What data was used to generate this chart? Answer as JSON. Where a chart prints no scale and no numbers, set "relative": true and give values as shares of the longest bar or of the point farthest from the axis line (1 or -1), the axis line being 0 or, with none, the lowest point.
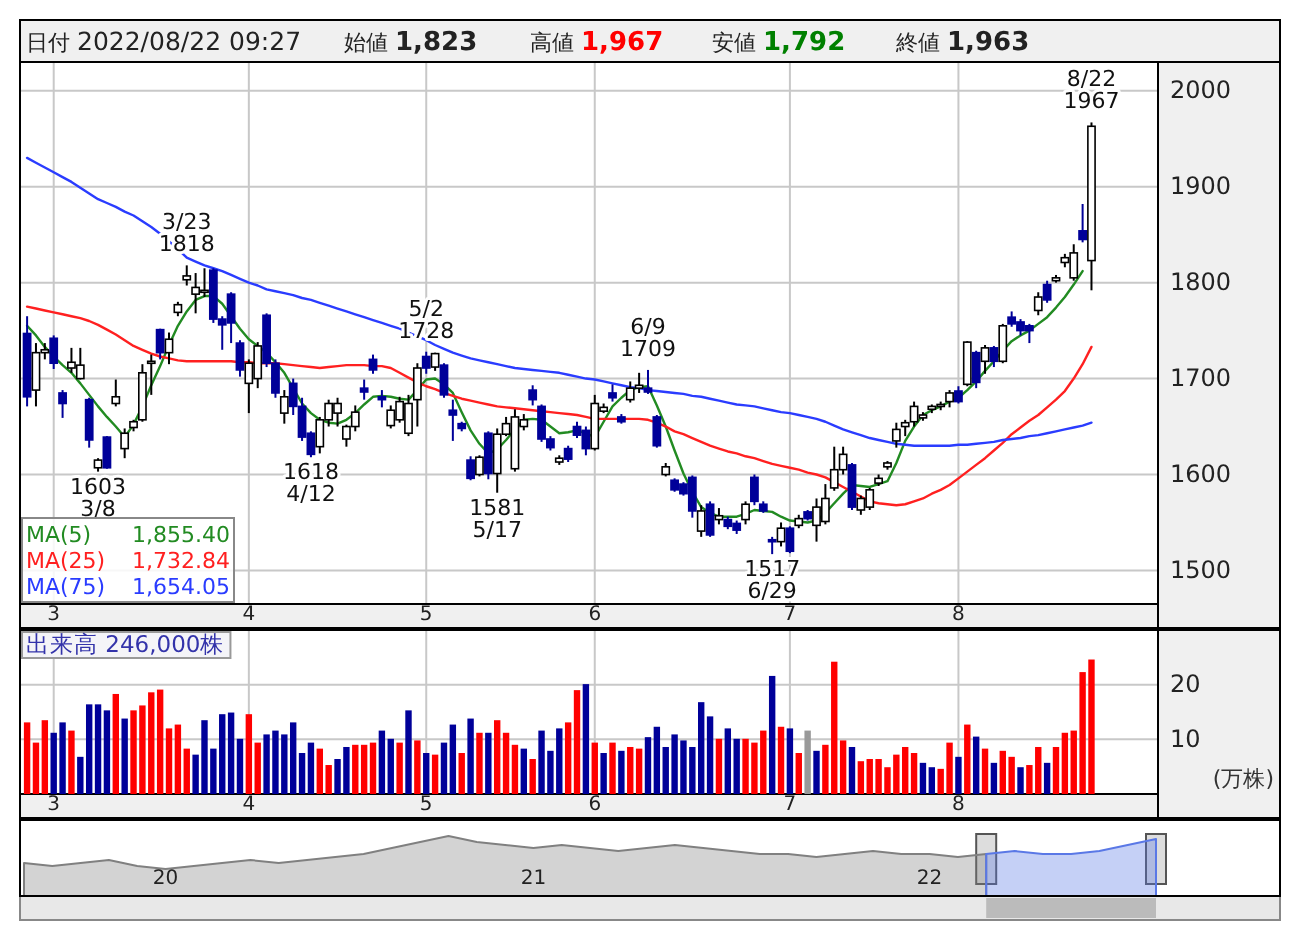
{
  "chart_data": [
    {
      "type": "candlestick",
      "ylim": [
        1465,
        2030
      ],
      "yticks": [
        1500,
        1600,
        1700,
        1800,
        1900,
        2000
      ],
      "grid": true,
      "annotations": [
        "日付 2022/08/22 09:27",
        "始値 1,823",
        "高値 1,967",
        "安値 1,792",
        "終値 1,963",
        {
          "text": "1603 3/8",
          "y": 1603
        },
        {
          "text": "3/23 1818",
          "y": 1818
        },
        {
          "text": "1618 4/12",
          "y": 1618
        },
        {
          "text": "5/2 1728",
          "y": 1728
        },
        {
          "text": "1581 5/17",
          "y": 1581
        },
        {
          "text": "6/9 1709",
          "y": 1709
        },
        {
          "text": "1517 6/29",
          "y": 1517
        },
        {
          "text": "8/22 1967",
          "y": 1967
        }
      ],
      "categories": [
        null,
        null,
        null,
        "3",
        null,
        null,
        null,
        null,
        null,
        null,
        null,
        null,
        null,
        null,
        null,
        null,
        null,
        null,
        null,
        null,
        null,
        null,
        null,
        null,
        null,
        "4",
        null,
        null,
        null,
        null,
        null,
        null,
        null,
        null,
        null,
        null,
        null,
        null,
        null,
        null,
        null,
        null,
        null,
        null,
        null,
        "5",
        null,
        null,
        null,
        null,
        null,
        null,
        null,
        null,
        null,
        null,
        null,
        null,
        null,
        null,
        null,
        null,
        null,
        null,
        "6",
        null,
        null,
        null,
        null,
        null,
        null,
        null,
        null,
        null,
        null,
        null,
        null,
        null,
        null,
        null,
        null,
        null,
        null,
        null,
        null,
        null,
        "7",
        null,
        null,
        null,
        null,
        null,
        null,
        null,
        null,
        null,
        null,
        null,
        null,
        null,
        null,
        null,
        null,
        null,
        null,
        "8",
        null,
        null,
        null,
        null,
        null,
        null,
        null,
        null,
        null,
        null,
        null,
        null,
        null,
        null,
        null
      ],
      "ohlc": [
        [
          1747,
          1765,
          1671,
          1681
        ],
        [
          1688,
          1737,
          1671,
          1727
        ],
        [
          1727,
          1737,
          1720,
          1730
        ],
        [
          1742,
          1745,
          1710,
          1716
        ],
        [
          1685,
          1688,
          1659,
          1674
        ],
        [
          1711,
          1732,
          1706,
          1717
        ],
        [
          1700,
          1732,
          1699,
          1714
        ],
        [
          1678,
          1680,
          1628,
          1636
        ],
        [
          1607,
          1617,
          1603,
          1615
        ],
        [
          1639,
          1640,
          1606,
          1607
        ],
        [
          1674,
          1699,
          1671,
          1681
        ],
        [
          1627,
          1648,
          1617,
          1643
        ],
        [
          1649,
          1657,
          1645,
          1655
        ],
        [
          1657,
          1715,
          1655,
          1706
        ],
        [
          1716,
          1725,
          1683,
          1718
        ],
        [
          1751,
          1752,
          1720,
          1727
        ],
        [
          1727,
          1748,
          1715,
          1741
        ],
        [
          1769,
          1780,
          1765,
          1777
        ],
        [
          1803,
          1818,
          1797,
          1807
        ],
        [
          1788,
          1810,
          1768,
          1795
        ],
        [
          1790,
          1815,
          1785,
          1792
        ],
        [
          1813,
          1815,
          1758,
          1762
        ],
        [
          1762,
          1765,
          1730,
          1756
        ],
        [
          1788,
          1790,
          1737,
          1758
        ],
        [
          1737,
          1740,
          1702,
          1709
        ],
        [
          1695,
          1720,
          1664,
          1716
        ],
        [
          1700,
          1738,
          1690,
          1734
        ],
        [
          1766,
          1768,
          1712,
          1716
        ],
        [
          1716,
          1720,
          1680,
          1685
        ],
        [
          1664,
          1688,
          1653,
          1681
        ],
        [
          1695,
          1700,
          1662,
          1671
        ],
        [
          1671,
          1680,
          1635,
          1639
        ],
        [
          1643,
          1645,
          1618,
          1621
        ],
        [
          1629,
          1660,
          1622,
          1657
        ],
        [
          1657,
          1678,
          1650,
          1674
        ],
        [
          1664,
          1680,
          1650,
          1674
        ],
        [
          1637,
          1652,
          1629,
          1650
        ],
        [
          1650,
          1672,
          1645,
          1665
        ],
        [
          1690,
          1699,
          1678,
          1686
        ],
        [
          1720,
          1725,
          1705,
          1709
        ],
        [
          1681,
          1688,
          1670,
          1678
        ],
        [
          1651,
          1672,
          1648,
          1667
        ],
        [
          1657,
          1681,
          1654,
          1676
        ],
        [
          1643,
          1683,
          1640,
          1674
        ],
        [
          1678,
          1716,
          1650,
          1711
        ],
        [
          1723,
          1728,
          1705,
          1711
        ],
        [
          1712,
          1727,
          1708,
          1726
        ],
        [
          1714,
          1716,
          1680,
          1683
        ],
        [
          1667,
          1678,
          1635,
          1662
        ],
        [
          1653,
          1655,
          1645,
          1648
        ],
        [
          1615,
          1619,
          1594,
          1596
        ],
        [
          1600,
          1620,
          1598,
          1618
        ],
        [
          1643,
          1645,
          1595,
          1601
        ],
        [
          1601,
          1648,
          1581,
          1642
        ],
        [
          1642,
          1660,
          1640,
          1653
        ],
        [
          1606,
          1668,
          1603,
          1660
        ],
        [
          1650,
          1663,
          1646,
          1657
        ],
        [
          1688,
          1693,
          1672,
          1678
        ],
        [
          1671,
          1673,
          1634,
          1637
        ],
        [
          1637,
          1640,
          1625,
          1628
        ],
        [
          1613,
          1620,
          1610,
          1617
        ],
        [
          1627,
          1630,
          1613,
          1616
        ],
        [
          1650,
          1655,
          1638,
          1641
        ],
        [
          1646,
          1650,
          1620,
          1627
        ],
        [
          1627,
          1683,
          1625,
          1674
        ],
        [
          1666,
          1674,
          1664,
          1670
        ],
        [
          1685,
          1694,
          1676,
          1680
        ],
        [
          1660,
          1663,
          1653,
          1655
        ],
        [
          1678,
          1697,
          1675,
          1690
        ],
        [
          1690,
          1706,
          1685,
          1693
        ],
        [
          1690,
          1709,
          1684,
          1686
        ],
        [
          1660,
          1662,
          1628,
          1630
        ],
        [
          1600,
          1612,
          1598,
          1608
        ],
        [
          1594,
          1596,
          1582,
          1584
        ],
        [
          1590,
          1592,
          1578,
          1580
        ],
        [
          1597,
          1599,
          1555,
          1562
        ],
        [
          1541,
          1568,
          1535,
          1562
        ],
        [
          1569,
          1572,
          1535,
          1537
        ],
        [
          1553,
          1565,
          1548,
          1557
        ],
        [
          1553,
          1556,
          1543,
          1546
        ],
        [
          1549,
          1552,
          1538,
          1542
        ],
        [
          1553,
          1572,
          1548,
          1569
        ],
        [
          1597,
          1600,
          1568,
          1572
        ],
        [
          1569,
          1572,
          1560,
          1562
        ],
        [
          1532,
          1535,
          1517,
          1530
        ],
        [
          1530,
          1550,
          1525,
          1544
        ],
        [
          1544,
          1546,
          1518,
          1520
        ],
        [
          1547,
          1558,
          1544,
          1554
        ],
        [
          1561,
          1563,
          1552,
          1554
        ],
        [
          1547,
          1575,
          1530,
          1566
        ],
        [
          1551,
          1590,
          1548,
          1575
        ],
        [
          1586,
          1629,
          1583,
          1605
        ],
        [
          1605,
          1629,
          1600,
          1621
        ],
        [
          1610,
          1612,
          1563,
          1566
        ],
        [
          1563,
          1578,
          1558,
          1575
        ],
        [
          1566,
          1586,
          1563,
          1584
        ],
        [
          1591,
          1600,
          1588,
          1596
        ],
        [
          1608,
          1614,
          1605,
          1612
        ],
        [
          1635,
          1654,
          1628,
          1647
        ],
        [
          1650,
          1657,
          1640,
          1654
        ],
        [
          1655,
          1676,
          1650,
          1671
        ],
        [
          1659,
          1665,
          1656,
          1662
        ],
        [
          1668,
          1673,
          1664,
          1671
        ],
        [
          1671,
          1676,
          1667,
          1673
        ],
        [
          1676,
          1688,
          1670,
          1685
        ],
        [
          1687,
          1692,
          1674,
          1676
        ],
        [
          1694,
          1739,
          1692,
          1738
        ],
        [
          1727,
          1729,
          1690,
          1696
        ],
        [
          1718,
          1735,
          1705,
          1732
        ],
        [
          1732,
          1734,
          1712,
          1718
        ],
        [
          1718,
          1757,
          1716,
          1755
        ],
        [
          1764,
          1770,
          1754,
          1757
        ],
        [
          1759,
          1762,
          1745,
          1750
        ],
        [
          1755,
          1757,
          1737,
          1750
        ],
        [
          1771,
          1790,
          1766,
          1785
        ],
        [
          1798,
          1802,
          1779,
          1782
        ],
        [
          1802,
          1808,
          1800,
          1805
        ],
        [
          1821,
          1830,
          1816,
          1826
        ],
        [
          1805,
          1840,
          1802,
          1831
        ],
        [
          1854,
          1882,
          1842,
          1845
        ],
        [
          1823,
          1967,
          1792,
          1963
        ]
      ],
      "series": [
        {
          "name": "MA(5) 1,855.40",
          "type": "line",
          "color": "#228b22",
          "values": [
            1755,
            1745,
            1733,
            1723,
            1714,
            1706,
            1695,
            1683,
            1671,
            1660,
            1650,
            1639,
            1652,
            1671,
            1693,
            1713,
            1735,
            1755,
            1770,
            1782,
            1786,
            1786,
            1778,
            1765,
            1752,
            1741,
            1734,
            1727,
            1717,
            1706,
            1690,
            1674,
            1664,
            1657,
            1654,
            1653,
            1657,
            1664,
            1673,
            1681,
            1682,
            1681,
            1679,
            1678,
            1688,
            1699,
            1700,
            1694,
            1685,
            1665,
            1646,
            1632,
            1622,
            1626,
            1636,
            1647,
            1657,
            1658,
            1657,
            1650,
            1643,
            1644,
            1646,
            1643,
            1639,
            1655,
            1671,
            1680,
            1688,
            1691,
            1692,
            1672,
            1650,
            1625,
            1601,
            1582,
            1566,
            1560,
            1556,
            1556,
            1556,
            1559,
            1563,
            1562,
            1561,
            1556,
            1552,
            1551,
            1550,
            1552,
            1560,
            1570,
            1580,
            1589,
            1588,
            1587,
            1590,
            1593,
            1612,
            1635,
            1650,
            1662,
            1667,
            1671,
            1676,
            1680,
            1688,
            1697,
            1708,
            1718,
            1729,
            1739,
            1745,
            1750,
            1757,
            1764,
            1774,
            1785,
            1798,
            1812,
            null
          ]
        },
        {
          "name": "MA(25) 1,732.84",
          "type": "line",
          "color": "#ff2020",
          "values": [
            1775,
            1773,
            1771,
            1769,
            1767,
            1765,
            1763,
            1760,
            1756,
            1751,
            1746,
            1740,
            1734,
            1730,
            1726,
            1723,
            1721,
            1719,
            1718,
            1718,
            1718,
            1718,
            1718,
            1718,
            1717,
            1717,
            1716,
            1716,
            1716,
            1715,
            1714,
            1713,
            1712,
            1711,
            1712,
            1713,
            1714,
            1714,
            1714,
            1713,
            1713,
            1711,
            1706,
            1701,
            1696,
            1692,
            1689,
            1685,
            1682,
            1679,
            1677,
            1675,
            1673,
            1671,
            1670,
            1669,
            1668,
            1667,
            1666,
            1665,
            1664,
            1663,
            1662,
            1660,
            1658,
            1658,
            1658,
            1658,
            1658,
            1658,
            1657,
            1654,
            1650,
            1645,
            1642,
            1638,
            1634,
            1630,
            1627,
            1624,
            1622,
            1619,
            1617,
            1614,
            1611,
            1609,
            1607,
            1605,
            1602,
            1600,
            1597,
            1592,
            1587,
            1582,
            1577,
            1572,
            1570,
            1569,
            1568,
            1569,
            1572,
            1575,
            1580,
            1584,
            1589,
            1596,
            1603,
            1610,
            1617,
            1625,
            1633,
            1642,
            1649,
            1656,
            1662,
            1670,
            1678,
            1687,
            1700,
            1715,
            1733
          ]
        },
        {
          "name": "MA(75) 1,654.05",
          "type": "line",
          "color": "#2a3cff",
          "values": [
            1930,
            1925,
            1920,
            1915,
            1910,
            1905,
            1899,
            1893,
            1887,
            1883,
            1879,
            1874,
            1870,
            1864,
            1858,
            1851,
            1843,
            1835,
            1826,
            1822,
            1818,
            1815,
            1812,
            1808,
            1804,
            1800,
            1797,
            1793,
            1791,
            1789,
            1787,
            1784,
            1782,
            1779,
            1776,
            1773,
            1770,
            1767,
            1764,
            1761,
            1758,
            1755,
            1752,
            1748,
            1744,
            1740,
            1735,
            1731,
            1727,
            1724,
            1721,
            1719,
            1717,
            1715,
            1713,
            1711,
            1710,
            1709,
            1708,
            1707,
            1706,
            1704,
            1702,
            1700,
            1699,
            1697,
            1695,
            1693,
            1691,
            1690,
            1688,
            1687,
            1686,
            1685,
            1684,
            1682,
            1681,
            1679,
            1677,
            1675,
            1673,
            1672,
            1671,
            1669,
            1667,
            1665,
            1664,
            1662,
            1660,
            1658,
            1655,
            1651,
            1647,
            1644,
            1641,
            1638,
            1636,
            1634,
            1632,
            1631,
            1630,
            1630,
            1630,
            1630,
            1630,
            1631,
            1631,
            1632,
            1633,
            1634,
            1636,
            1637,
            1638,
            1640,
            1641,
            1643,
            1645,
            1647,
            1649,
            1651,
            1654
          ]
        }
      ]
    },
    {
      "type": "bar",
      "title": "出来高 246,000株",
      "ylabel": "(万株)",
      "ylim": [
        0,
        30
      ],
      "yticks": [
        10,
        20
      ],
      "grid": true,
      "categories": [
        null,
        null,
        null,
        "3",
        null,
        null,
        null,
        null,
        null,
        null,
        null,
        null,
        null,
        null,
        null,
        null,
        null,
        null,
        null,
        null,
        null,
        null,
        null,
        null,
        null,
        "4",
        null,
        null,
        null,
        null,
        null,
        null,
        null,
        null,
        null,
        null,
        null,
        null,
        null,
        null,
        null,
        null,
        null,
        null,
        null,
        "5",
        null,
        null,
        null,
        null,
        null,
        null,
        null,
        null,
        null,
        null,
        null,
        null,
        null,
        null,
        null,
        null,
        null,
        null,
        "6",
        null,
        null,
        null,
        null,
        null,
        null,
        null,
        null,
        null,
        null,
        null,
        null,
        null,
        null,
        null,
        null,
        null,
        null,
        null,
        null,
        null,
        "7",
        null,
        null,
        null,
        null,
        null,
        null,
        null,
        null,
        null,
        null,
        null,
        null,
        null,
        null,
        null,
        null,
        null,
        null,
        "8",
        null,
        null,
        null,
        null,
        null,
        null,
        null,
        null,
        null,
        null,
        null,
        null,
        null,
        null,
        null
      ],
      "values": [
        13.1,
        9.4,
        13.5,
        11.2,
        13.1,
        11.6,
        6.8,
        16.4,
        16.4,
        15.3,
        18.3,
        13.8,
        15.3,
        16.2,
        18.6,
        19.1,
        12.0,
        12.7,
        8.3,
        7.2,
        13.5,
        8.3,
        14.6,
        14.9,
        10.1,
        14.6,
        9.4,
        10.9,
        11.6,
        10.9,
        13.1,
        7.5,
        9.4,
        8.3,
        5.3,
        6.4,
        8.6,
        9.0,
        9.0,
        9.4,
        11.6,
        10.1,
        9.4,
        15.3,
        9.8,
        7.5,
        7.2,
        9.4,
        12.7,
        7.5,
        13.8,
        11.2,
        11.2,
        13.5,
        11.2,
        9.0,
        8.3,
        6.4,
        11.6,
        7.9,
        12.0,
        13.1,
        19.0,
        20.1,
        9.4,
        7.5,
        9.4,
        7.9,
        8.6,
        8.3,
        10.4,
        12.3,
        8.6,
        10.9,
        9.8,
        8.6,
        16.8,
        14.2,
        10.1,
        12.0,
        10.1,
        10.1,
        9.4,
        11.6,
        21.6,
        12.3,
        12.0,
        7.5,
        11.6,
        7.9,
        9.0,
        24.2,
        9.8,
        8.6,
        6.0,
        6.4,
        6.4,
        4.9,
        7.2,
        8.6,
        7.5,
        5.7,
        4.9,
        4.6,
        9.4,
        6.8,
        12.7,
        10.5,
        8.3,
        5.7,
        7.9,
        6.8,
        4.9,
        5.3,
        8.6,
        5.7,
        8.6,
        11.2,
        11.6,
        22.3,
        24.6
      ],
      "colors": [
        "#ff0000",
        "#ff0000",
        "#ff0000",
        "#000099",
        "#000099",
        "#ff0000",
        "#000099",
        "#000099",
        "#000099",
        "#000099",
        "#ff0000",
        "#000099",
        "#ff0000",
        "#ff0000",
        "#ff0000",
        "#ff0000",
        "#ff0000",
        "#ff0000",
        "#ff0000",
        "#000099",
        "#000099",
        "#000099",
        "#000099",
        "#000099",
        "#000099",
        "#ff0000",
        "#ff0000",
        "#000099",
        "#000099",
        "#000099",
        "#000099",
        "#000099",
        "#000099",
        "#ff0000",
        "#ff0000",
        "#000099",
        "#000099",
        "#ff0000",
        "#ff0000",
        "#ff0000",
        "#000099",
        "#000099",
        "#ff0000",
        "#000099",
        "#ff0000",
        "#000099",
        "#ff0000",
        "#000099",
        "#000099",
        "#ff0000",
        "#000099",
        "#ff0000",
        "#000099",
        "#ff0000",
        "#ff0000",
        "#ff0000",
        "#000099",
        "#ff0000",
        "#000099",
        "#000099",
        "#000099",
        "#ff0000",
        "#ff0000",
        "#000099",
        "#ff0000",
        "#000099",
        "#ff0000",
        "#000099",
        "#ff0000",
        "#ff0000",
        "#000099",
        "#000099",
        "#000099",
        "#000099",
        "#000099",
        "#000099",
        "#000099",
        "#000099",
        "#ff0000",
        "#000099",
        "#000099",
        "#ff0000",
        "#ff0000",
        "#ff0000",
        "#000099",
        "#ff0000",
        "#000099",
        "#ff0000",
        "#999999",
        "#000099",
        "#ff0000",
        "#ff0000",
        "#ff0000",
        "#000099",
        "#ff0000",
        "#ff0000",
        "#ff0000",
        "#ff0000",
        "#ff0000",
        "#ff0000",
        "#ff0000",
        "#000099",
        "#000099",
        "#ff0000",
        "#ff0000",
        "#000099",
        "#ff0000",
        "#000099",
        "#ff0000",
        "#000099",
        "#ff0000",
        "#ff0000",
        "#000099",
        "#ff0000",
        "#ff0000",
        "#000099",
        "#ff0000",
        "#ff0000",
        "#ff0000",
        "#ff0000",
        "#ff0000"
      ]
    },
    {
      "type": "area",
      "relative": true,
      "categories": [
        null,
        null,
        null,
        null,
        null,
        "20",
        null,
        null,
        null,
        null,
        null,
        null,
        null,
        null,
        null,
        null,
        null,
        null,
        "21",
        null,
        null,
        null,
        null,
        null,
        null,
        null,
        null,
        null,
        null,
        null,
        null,
        null,
        "22",
        null,
        null,
        null,
        null,
        null,
        null,
        null,
        null
      ],
      "series": [
        {
          "color": "#808080",
          "values": [
            0.55,
            0.5,
            0.55,
            0.6,
            0.5,
            0.45,
            0.5,
            0.55,
            0.6,
            0.55,
            0.6,
            0.65,
            0.7,
            0.8,
            0.9,
            1,
            0.9,
            0.85,
            0.8,
            0.85,
            0.8,
            0.75,
            0.8,
            0.85,
            0.8,
            0.75,
            0.7,
            0.7,
            0.65,
            0.7,
            0.75,
            0.7,
            0.7,
            0.65,
            0.7,
            null,
            null,
            null,
            null,
            null,
            null
          ]
        },
        {
          "color": "#5a78e6",
          "values": [
            null,
            null,
            null,
            null,
            null,
            null,
            null,
            null,
            null,
            null,
            null,
            null,
            null,
            null,
            null,
            null,
            null,
            null,
            null,
            null,
            null,
            null,
            null,
            null,
            null,
            null,
            null,
            null,
            null,
            null,
            null,
            null,
            null,
            null,
            0.7,
            0.75,
            0.7,
            0.7,
            0.75,
            0.85,
            0.95
          ]
        }
      ]
    }
  ]
}
